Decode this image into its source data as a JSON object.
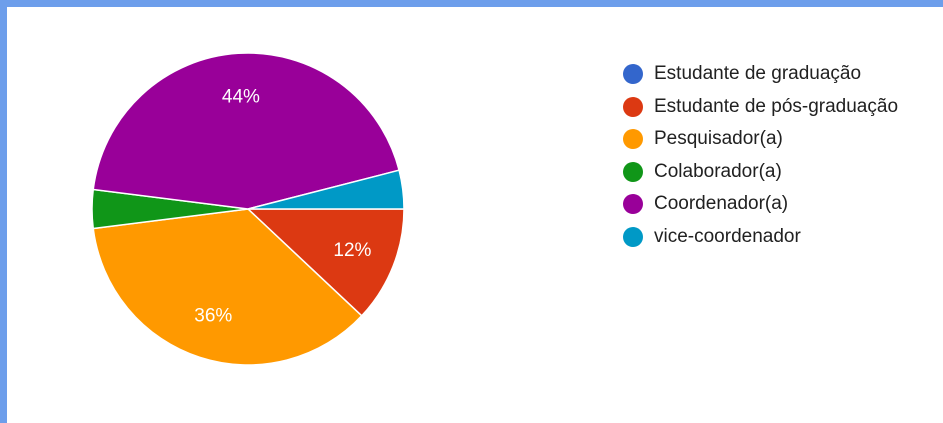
{
  "chart_data": {
    "type": "pie",
    "categories": [
      "Estudante de graduação",
      "Estudante de pós-graduação",
      "Pesquisador(a)",
      "Colaborador(a)",
      "Coordenador(a)",
      "vice-coordenador"
    ],
    "values": [
      0,
      12,
      36,
      4,
      44,
      4
    ],
    "slice_labels": [
      "",
      "12%",
      "36%",
      "",
      "44%",
      ""
    ],
    "colors": [
      "#3366cc",
      "#dc3912",
      "#ff9900",
      "#109618",
      "#990099",
      "#0099c6"
    ],
    "label_color": "#ffffff",
    "legend_position": "right",
    "start_angle": "3 o'clock",
    "direction": "clockwise"
  },
  "legend": {
    "items": [
      {
        "label": "Estudante de graduação",
        "color": "#3366cc"
      },
      {
        "label": "Estudante de pós-graduação",
        "color": "#dc3912"
      },
      {
        "label": "Pesquisador(a)",
        "color": "#ff9900"
      },
      {
        "label": "Colaborador(a)",
        "color": "#109618"
      },
      {
        "label": "Coordenador(a)",
        "color": "#990099"
      },
      {
        "label": "vice-coordenador",
        "color": "#0099c6"
      }
    ]
  }
}
